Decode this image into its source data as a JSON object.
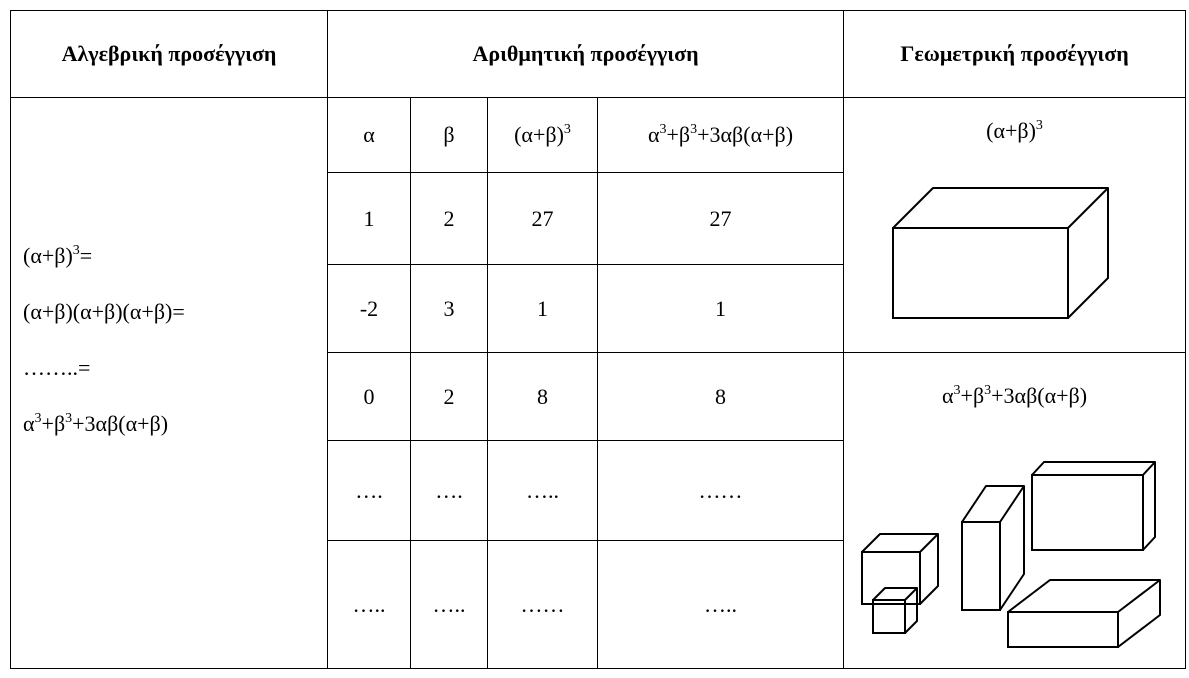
{
  "table": {
    "headers": [
      "Αλγεβρική προσέγγιση",
      "Αριθμητική προσέγγιση",
      "Γεωμετρική προσέγγιση"
    ],
    "algebraic_lines": [
      [
        {
          "text": "(α+β)",
          "sup": "3"
        },
        {
          "text": "="
        }
      ],
      [
        {
          "text": "(α+β)(α+β)(α+β)="
        }
      ],
      [
        {
          "text": "……..="
        }
      ],
      [
        {
          "text": "α",
          "sup": "3"
        },
        {
          "text": "+β",
          "sup": "3"
        },
        {
          "text": "+3αβ(α+β)"
        }
      ]
    ],
    "arithmetic_header": [
      [
        {
          "text": "α"
        }
      ],
      [
        {
          "text": "β"
        }
      ],
      [
        {
          "text": "(α+β)",
          "sup": "3"
        }
      ],
      [
        {
          "text": "α",
          "sup": "3"
        },
        {
          "text": "+β",
          "sup": "3"
        },
        {
          "text": "+3αβ(α+β)"
        }
      ]
    ],
    "arithmetic_rows": [
      [
        1,
        2,
        27,
        27
      ],
      [
        -2,
        3,
        1,
        1
      ],
      [
        0,
        2,
        8,
        8
      ],
      [
        "….",
        "….",
        "…..",
        "……"
      ],
      [
        "…..",
        "…..",
        "……",
        "….."
      ]
    ],
    "geometric_labels": [
      [
        {
          "text": "(α+β)",
          "sup": "3"
        }
      ],
      [
        {
          "text": "α",
          "sup": "3"
        },
        {
          "text": "+β",
          "sup": "3"
        },
        {
          "text": "+3αβ(α+β)"
        }
      ]
    ]
  }
}
